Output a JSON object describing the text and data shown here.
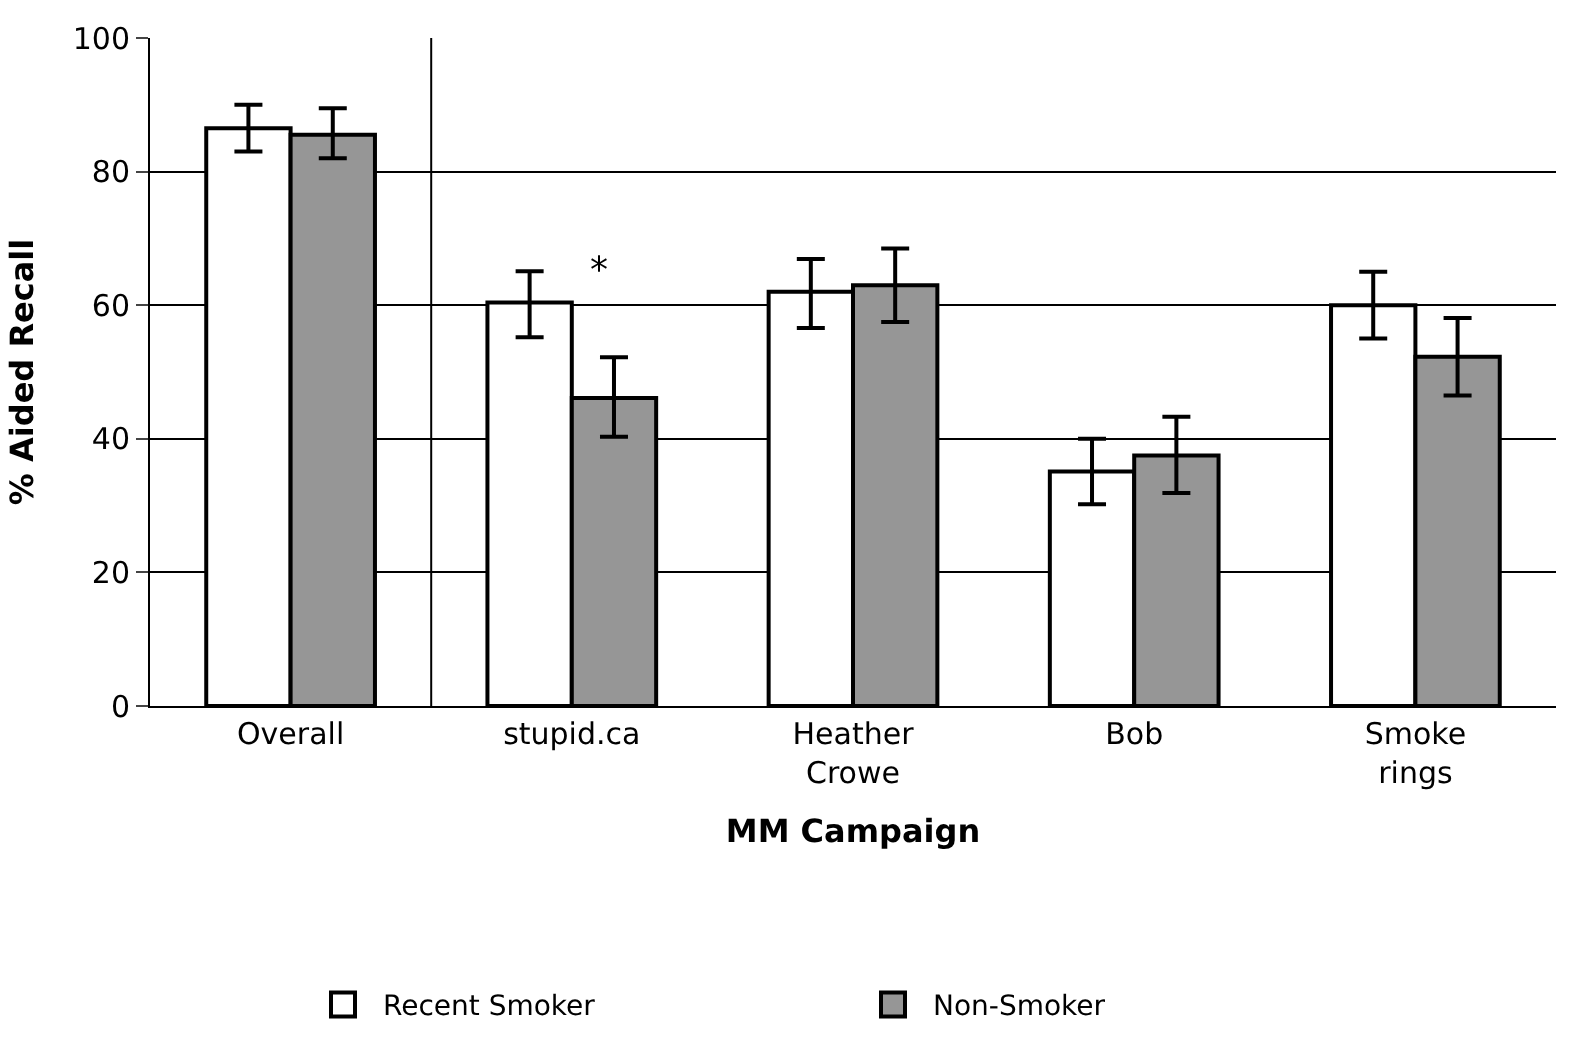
{
  "chart_data": {
    "type": "bar",
    "categories": [
      "Overall",
      "stupid.ca",
      "Heather\nCrowe",
      "Bob",
      "Smoke\nrings"
    ],
    "series": [
      {
        "name": "Recent Smoker",
        "color": "#ffffff",
        "values": [
          86.5,
          60.4,
          62.0,
          35.1,
          60.0
        ],
        "errors": [
          [
            83,
            90
          ],
          [
            55.2,
            65.1
          ],
          [
            56.6,
            66.9
          ],
          [
            30.2,
            40.0
          ],
          [
            55.0,
            65.0
          ]
        ]
      },
      {
        "name": "Non-Smoker",
        "color": "#969696",
        "values": [
          85.5,
          46.1,
          63.0,
          37.5,
          52.3
        ],
        "errors": [
          [
            82,
            89.5
          ],
          [
            40.3,
            52.2
          ],
          [
            57.5,
            68.5
          ],
          [
            31.9,
            43.3
          ],
          [
            46.5,
            58.1
          ]
        ]
      }
    ],
    "xlabel": "MM Campaign",
    "ylabel": "% Aided Recall",
    "ylim": [
      0,
      100
    ],
    "yticks": [
      0,
      20,
      40,
      60,
      80,
      100
    ],
    "grid": "y",
    "legend": "bottom",
    "annotations": [
      "*"
    ]
  }
}
